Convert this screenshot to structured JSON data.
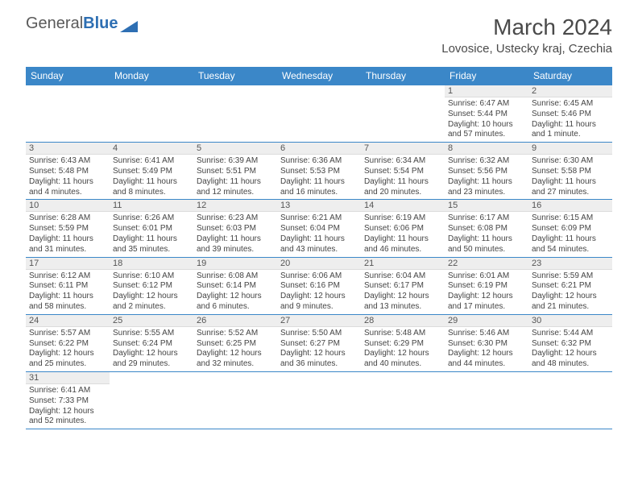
{
  "logo": {
    "general": "General",
    "blue": "Blue"
  },
  "title": "March 2024",
  "location": "Lovosice, Ustecky kraj, Czechia",
  "colors": {
    "header_bg": "#3b87c8",
    "header_text": "#ffffff",
    "daynum_bg": "#eeeeee",
    "border": "#3b87c8"
  },
  "day_names": [
    "Sunday",
    "Monday",
    "Tuesday",
    "Wednesday",
    "Thursday",
    "Friday",
    "Saturday"
  ],
  "weeks": [
    [
      null,
      null,
      null,
      null,
      null,
      {
        "n": "1",
        "sunrise": "Sunrise: 6:47 AM",
        "sunset": "Sunset: 5:44 PM",
        "daylight1": "Daylight: 10 hours",
        "daylight2": "and 57 minutes."
      },
      {
        "n": "2",
        "sunrise": "Sunrise: 6:45 AM",
        "sunset": "Sunset: 5:46 PM",
        "daylight1": "Daylight: 11 hours",
        "daylight2": "and 1 minute."
      }
    ],
    [
      {
        "n": "3",
        "sunrise": "Sunrise: 6:43 AM",
        "sunset": "Sunset: 5:48 PM",
        "daylight1": "Daylight: 11 hours",
        "daylight2": "and 4 minutes."
      },
      {
        "n": "4",
        "sunrise": "Sunrise: 6:41 AM",
        "sunset": "Sunset: 5:49 PM",
        "daylight1": "Daylight: 11 hours",
        "daylight2": "and 8 minutes."
      },
      {
        "n": "5",
        "sunrise": "Sunrise: 6:39 AM",
        "sunset": "Sunset: 5:51 PM",
        "daylight1": "Daylight: 11 hours",
        "daylight2": "and 12 minutes."
      },
      {
        "n": "6",
        "sunrise": "Sunrise: 6:36 AM",
        "sunset": "Sunset: 5:53 PM",
        "daylight1": "Daylight: 11 hours",
        "daylight2": "and 16 minutes."
      },
      {
        "n": "7",
        "sunrise": "Sunrise: 6:34 AM",
        "sunset": "Sunset: 5:54 PM",
        "daylight1": "Daylight: 11 hours",
        "daylight2": "and 20 minutes."
      },
      {
        "n": "8",
        "sunrise": "Sunrise: 6:32 AM",
        "sunset": "Sunset: 5:56 PM",
        "daylight1": "Daylight: 11 hours",
        "daylight2": "and 23 minutes."
      },
      {
        "n": "9",
        "sunrise": "Sunrise: 6:30 AM",
        "sunset": "Sunset: 5:58 PM",
        "daylight1": "Daylight: 11 hours",
        "daylight2": "and 27 minutes."
      }
    ],
    [
      {
        "n": "10",
        "sunrise": "Sunrise: 6:28 AM",
        "sunset": "Sunset: 5:59 PM",
        "daylight1": "Daylight: 11 hours",
        "daylight2": "and 31 minutes."
      },
      {
        "n": "11",
        "sunrise": "Sunrise: 6:26 AM",
        "sunset": "Sunset: 6:01 PM",
        "daylight1": "Daylight: 11 hours",
        "daylight2": "and 35 minutes."
      },
      {
        "n": "12",
        "sunrise": "Sunrise: 6:23 AM",
        "sunset": "Sunset: 6:03 PM",
        "daylight1": "Daylight: 11 hours",
        "daylight2": "and 39 minutes."
      },
      {
        "n": "13",
        "sunrise": "Sunrise: 6:21 AM",
        "sunset": "Sunset: 6:04 PM",
        "daylight1": "Daylight: 11 hours",
        "daylight2": "and 43 minutes."
      },
      {
        "n": "14",
        "sunrise": "Sunrise: 6:19 AM",
        "sunset": "Sunset: 6:06 PM",
        "daylight1": "Daylight: 11 hours",
        "daylight2": "and 46 minutes."
      },
      {
        "n": "15",
        "sunrise": "Sunrise: 6:17 AM",
        "sunset": "Sunset: 6:08 PM",
        "daylight1": "Daylight: 11 hours",
        "daylight2": "and 50 minutes."
      },
      {
        "n": "16",
        "sunrise": "Sunrise: 6:15 AM",
        "sunset": "Sunset: 6:09 PM",
        "daylight1": "Daylight: 11 hours",
        "daylight2": "and 54 minutes."
      }
    ],
    [
      {
        "n": "17",
        "sunrise": "Sunrise: 6:12 AM",
        "sunset": "Sunset: 6:11 PM",
        "daylight1": "Daylight: 11 hours",
        "daylight2": "and 58 minutes."
      },
      {
        "n": "18",
        "sunrise": "Sunrise: 6:10 AM",
        "sunset": "Sunset: 6:12 PM",
        "daylight1": "Daylight: 12 hours",
        "daylight2": "and 2 minutes."
      },
      {
        "n": "19",
        "sunrise": "Sunrise: 6:08 AM",
        "sunset": "Sunset: 6:14 PM",
        "daylight1": "Daylight: 12 hours",
        "daylight2": "and 6 minutes."
      },
      {
        "n": "20",
        "sunrise": "Sunrise: 6:06 AM",
        "sunset": "Sunset: 6:16 PM",
        "daylight1": "Daylight: 12 hours",
        "daylight2": "and 9 minutes."
      },
      {
        "n": "21",
        "sunrise": "Sunrise: 6:04 AM",
        "sunset": "Sunset: 6:17 PM",
        "daylight1": "Daylight: 12 hours",
        "daylight2": "and 13 minutes."
      },
      {
        "n": "22",
        "sunrise": "Sunrise: 6:01 AM",
        "sunset": "Sunset: 6:19 PM",
        "daylight1": "Daylight: 12 hours",
        "daylight2": "and 17 minutes."
      },
      {
        "n": "23",
        "sunrise": "Sunrise: 5:59 AM",
        "sunset": "Sunset: 6:21 PM",
        "daylight1": "Daylight: 12 hours",
        "daylight2": "and 21 minutes."
      }
    ],
    [
      {
        "n": "24",
        "sunrise": "Sunrise: 5:57 AM",
        "sunset": "Sunset: 6:22 PM",
        "daylight1": "Daylight: 12 hours",
        "daylight2": "and 25 minutes."
      },
      {
        "n": "25",
        "sunrise": "Sunrise: 5:55 AM",
        "sunset": "Sunset: 6:24 PM",
        "daylight1": "Daylight: 12 hours",
        "daylight2": "and 29 minutes."
      },
      {
        "n": "26",
        "sunrise": "Sunrise: 5:52 AM",
        "sunset": "Sunset: 6:25 PM",
        "daylight1": "Daylight: 12 hours",
        "daylight2": "and 32 minutes."
      },
      {
        "n": "27",
        "sunrise": "Sunrise: 5:50 AM",
        "sunset": "Sunset: 6:27 PM",
        "daylight1": "Daylight: 12 hours",
        "daylight2": "and 36 minutes."
      },
      {
        "n": "28",
        "sunrise": "Sunrise: 5:48 AM",
        "sunset": "Sunset: 6:29 PM",
        "daylight1": "Daylight: 12 hours",
        "daylight2": "and 40 minutes."
      },
      {
        "n": "29",
        "sunrise": "Sunrise: 5:46 AM",
        "sunset": "Sunset: 6:30 PM",
        "daylight1": "Daylight: 12 hours",
        "daylight2": "and 44 minutes."
      },
      {
        "n": "30",
        "sunrise": "Sunrise: 5:44 AM",
        "sunset": "Sunset: 6:32 PM",
        "daylight1": "Daylight: 12 hours",
        "daylight2": "and 48 minutes."
      }
    ],
    [
      {
        "n": "31",
        "sunrise": "Sunrise: 6:41 AM",
        "sunset": "Sunset: 7:33 PM",
        "daylight1": "Daylight: 12 hours",
        "daylight2": "and 52 minutes."
      },
      null,
      null,
      null,
      null,
      null,
      null
    ]
  ]
}
